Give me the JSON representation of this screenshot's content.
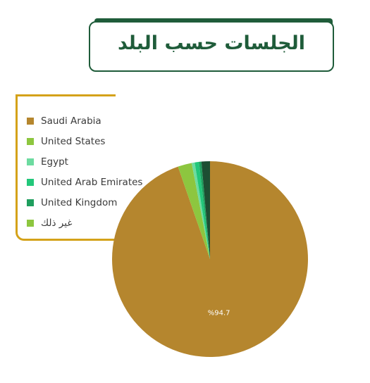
{
  "header": {
    "title": "الجلسات حسب البلد"
  },
  "colors": {
    "title_green": "#1f5c3a",
    "legend_border": "#d4a21a"
  },
  "chart_data": {
    "type": "pie",
    "title": "الجلسات حسب البلد",
    "legend_position": "left",
    "series": [
      {
        "name": "Saudi Arabia",
        "value": 94.7,
        "color": "#b5862e",
        "label": "%94.7"
      },
      {
        "name": "United States",
        "value": 2.3,
        "color": "#8dc63f",
        "label": ""
      },
      {
        "name": "Egypt",
        "value": 0.5,
        "color": "#6ddba0",
        "label": ""
      },
      {
        "name": "United Arab Emirates",
        "value": 0.7,
        "color": "#22c77a",
        "label": ""
      },
      {
        "name": "United Kingdom",
        "value": 0.4,
        "color": "#1f9e5e",
        "label": ""
      },
      {
        "name": "غير ذلك",
        "value": 1.4,
        "color": "#1d4f33",
        "label": ""
      }
    ]
  },
  "legend": {
    "items": [
      {
        "label": "Saudi Arabia",
        "color": "#b5862e"
      },
      {
        "label": "United States",
        "color": "#8dc63f"
      },
      {
        "label": "Egypt",
        "color": "#6ddba0"
      },
      {
        "label": "United Arab Emirates",
        "color": "#22c77a"
      },
      {
        "label": "United Kingdom",
        "color": "#1f9e5e"
      },
      {
        "label": "غير ذلك",
        "color": "#8dc63f"
      }
    ]
  }
}
